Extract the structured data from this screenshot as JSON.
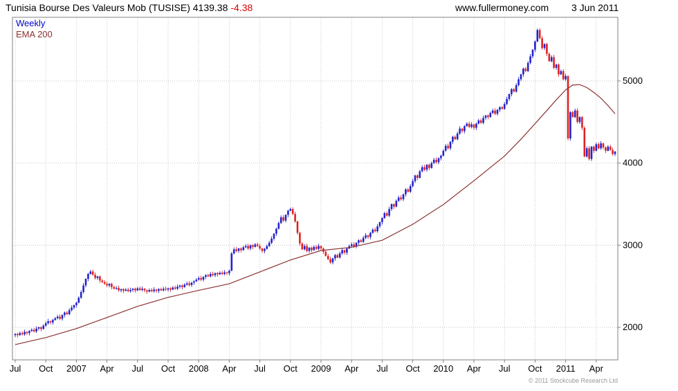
{
  "header": {
    "title_main": "Tunisia Bourse Des Valeurs Mob (TUSISE) 4139.38",
    "change": "-4.38",
    "site": "www.fullermoney.com",
    "date": "3 Jun 2011"
  },
  "legend": {
    "timeframe": "Weekly",
    "overlay": "EMA 200"
  },
  "footer": {
    "copyright": "© 2011 Stockcube Research Ltd"
  },
  "colors": {
    "up": "#2222cc",
    "down": "#dd2222",
    "ema": "#8b3232",
    "weekly_label": "#0000cc",
    "grid": "#c4c4c4",
    "border": "#808080",
    "axis_text": "#000000",
    "copyright_text": "#999999",
    "change_text": "#dd0000"
  },
  "chart_data": {
    "type": "candlestick",
    "title": "Tunisia Bourse Des Valeurs Mob (TUSISE)",
    "timeframe": "Weekly",
    "overlay": "EMA 200",
    "last_price": 4139.38,
    "change": -4.38,
    "date": "3 Jun 2011",
    "y_ticks": [
      2000,
      3000,
      4000,
      5000
    ],
    "y_range": [
      1604,
      5775
    ],
    "x_labels": [
      {
        "label": "Jul",
        "week": 0
      },
      {
        "label": "Oct",
        "week": 13
      },
      {
        "label": "2007",
        "week": 26
      },
      {
        "label": "Apr",
        "week": 39
      },
      {
        "label": "Jul",
        "week": 52
      },
      {
        "label": "Oct",
        "week": 65
      },
      {
        "label": "2008",
        "week": 78
      },
      {
        "label": "Apr",
        "week": 91
      },
      {
        "label": "Jul",
        "week": 104
      },
      {
        "label": "Oct",
        "week": 117
      },
      {
        "label": "2009",
        "week": 130
      },
      {
        "label": "Apr",
        "week": 143
      },
      {
        "label": "Jul",
        "week": 156
      },
      {
        "label": "Oct",
        "week": 169
      },
      {
        "label": "2010",
        "week": 182
      },
      {
        "label": "Apr",
        "week": 195
      },
      {
        "label": "Jul",
        "week": 208
      },
      {
        "label": "Oct",
        "week": 221
      },
      {
        "label": "2011",
        "week": 234
      },
      {
        "label": "Apr",
        "week": 247
      }
    ],
    "weekly_closes": [
      1920,
      1905,
      1930,
      1915,
      1945,
      1930,
      1955,
      1970,
      1950,
      1985,
      2000,
      1980,
      2020,
      2050,
      2075,
      2060,
      2090,
      2110,
      2130,
      2105,
      2150,
      2180,
      2160,
      2210,
      2240,
      2270,
      2300,
      2360,
      2430,
      2510,
      2590,
      2650,
      2680,
      2640,
      2600,
      2620,
      2570,
      2550,
      2530,
      2510,
      2530,
      2490,
      2470,
      2480,
      2450,
      2465,
      2445,
      2460,
      2440,
      2455,
      2470,
      2450,
      2475,
      2455,
      2470,
      2450,
      2435,
      2455,
      2440,
      2460,
      2445,
      2465,
      2450,
      2470,
      2460,
      2475,
      2460,
      2485,
      2470,
      2495,
      2510,
      2490,
      2520,
      2535,
      2515,
      2545,
      2560,
      2580,
      2600,
      2580,
      2615,
      2635,
      2620,
      2650,
      2635,
      2660,
      2645,
      2665,
      2650,
      2670,
      2660,
      2690,
      2900,
      2950,
      2930,
      2960,
      2940,
      2975,
      2990,
      2960,
      3000,
      2980,
      3010,
      2990,
      2960,
      2930,
      2955,
      2990,
      3030,
      3080,
      3140,
      3200,
      3270,
      3340,
      3300,
      3370,
      3420,
      3440,
      3380,
      3290,
      3150,
      3020,
      2950,
      2990,
      2930,
      2970,
      2940,
      2980,
      2955,
      2990,
      2960,
      2920,
      2870,
      2830,
      2790,
      2840,
      2880,
      2850,
      2900,
      2940,
      2910,
      2960,
      2990,
      3010,
      2985,
      3030,
      3060,
      3040,
      3090,
      3120,
      3100,
      3150,
      3190,
      3170,
      3230,
      3280,
      3330,
      3390,
      3360,
      3440,
      3500,
      3470,
      3540,
      3580,
      3560,
      3620,
      3680,
      3650,
      3720,
      3780,
      3850,
      3820,
      3900,
      3950,
      3920,
      3980,
      3940,
      4000,
      4040,
      4010,
      4060,
      4090,
      4150,
      4210,
      4180,
      4260,
      4320,
      4290,
      4360,
      4420,
      4390,
      4450,
      4480,
      4440,
      4470,
      4430,
      4480,
      4520,
      4490,
      4550,
      4580,
      4560,
      4610,
      4640,
      4600,
      4650,
      4680,
      4660,
      4720,
      4780,
      4840,
      4900,
      4870,
      4950,
      5020,
      5080,
      5150,
      5120,
      5220,
      5300,
      5380,
      5480,
      5620,
      5520,
      5400,
      5450,
      5330,
      5240,
      5290,
      5160,
      5200,
      5080,
      5120,
      5020,
      5060,
      4300,
      4620,
      4560,
      4640,
      4500,
      4560,
      4430,
      4080,
      4180,
      4050,
      4200,
      4150,
      4230,
      4180,
      4240,
      4190,
      4150,
      4200,
      4160,
      4110,
      4139.38
    ],
    "ema": {
      "name": "EMA 200",
      "points": [
        [
          0,
          1790
        ],
        [
          13,
          1875
        ],
        [
          26,
          1985
        ],
        [
          39,
          2120
        ],
        [
          52,
          2255
        ],
        [
          65,
          2365
        ],
        [
          78,
          2450
        ],
        [
          91,
          2530
        ],
        [
          104,
          2675
        ],
        [
          117,
          2820
        ],
        [
          130,
          2935
        ],
        [
          143,
          2975
        ],
        [
          156,
          3060
        ],
        [
          169,
          3255
        ],
        [
          182,
          3495
        ],
        [
          195,
          3785
        ],
        [
          208,
          4085
        ],
        [
          215,
          4290
        ],
        [
          221,
          4480
        ],
        [
          226,
          4640
        ],
        [
          230,
          4770
        ],
        [
          234,
          4890
        ],
        [
          237,
          4950
        ],
        [
          240,
          4955
        ],
        [
          243,
          4920
        ],
        [
          246,
          4860
        ],
        [
          249,
          4790
        ],
        [
          252,
          4700
        ],
        [
          255,
          4600
        ]
      ]
    }
  }
}
